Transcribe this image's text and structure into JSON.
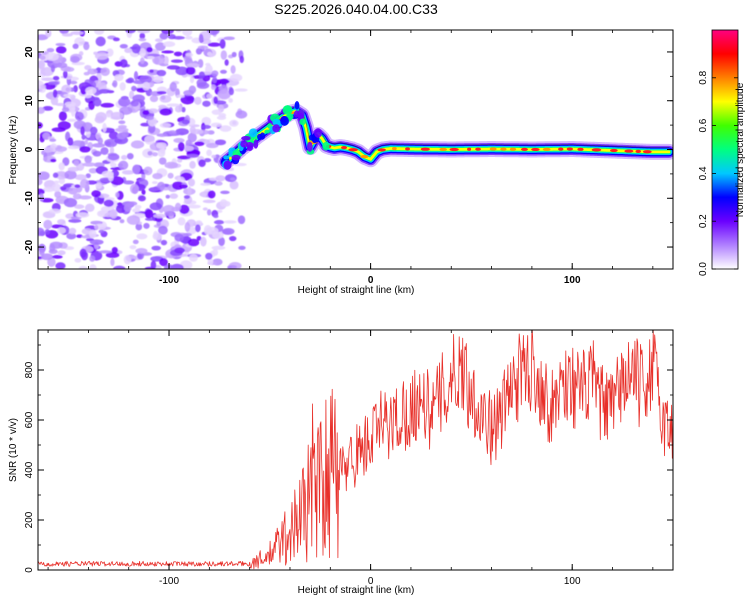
{
  "title": "S225.2026.040.04.00.C33",
  "chart_data": [
    {
      "type": "heatmap",
      "name": "spectrogram",
      "xlabel": "Height of straight line (km)",
      "ylabel": "Frequency (Hz)",
      "xlim": [
        -165,
        150
      ],
      "ylim": [
        -24.5,
        24.5
      ],
      "x_ticks": [
        -100,
        0,
        100
      ],
      "y_ticks": [
        -20,
        -10,
        0,
        10,
        20
      ],
      "noise_region_x": [
        -165,
        -65
      ],
      "ridge": {
        "x": [
          -72,
          -68,
          -64,
          -60,
          -56,
          -52,
          -48,
          -44,
          -40,
          -37,
          -34,
          -32,
          -30,
          -28,
          -26,
          -24,
          -22,
          -20,
          -18,
          -15,
          -12,
          -9,
          -6,
          -3,
          0,
          3,
          6,
          10,
          20,
          40,
          60,
          80,
          100,
          120,
          140,
          148
        ],
        "y": [
          -2.5,
          -1.2,
          0.3,
          1.5,
          2.8,
          4.0,
          5.2,
          6.5,
          7.5,
          7.8,
          7.0,
          4.5,
          0.5,
          2.0,
          3.0,
          2.2,
          0.8,
          0.5,
          0.3,
          0.5,
          0.3,
          0.0,
          -0.5,
          -1.5,
          -2.0,
          -0.5,
          0.0,
          0.2,
          0.1,
          0.0,
          0.1,
          0.0,
          0.1,
          -0.2,
          -0.5,
          -0.5
        ]
      },
      "colorbar": {
        "label": "Normalized spectral amplitude",
        "range": [
          0,
          1
        ],
        "ticks": [
          "0.0",
          "0.2",
          "0.4",
          "0.6",
          "0.8"
        ],
        "colors": [
          "#ffffff",
          "#b080ff",
          "#6a00ff",
          "#0000ff",
          "#00c8ff",
          "#00ff80",
          "#40ff00",
          "#ffff00",
          "#ff8000",
          "#ff0000",
          "#ff0080"
        ]
      }
    },
    {
      "type": "line",
      "name": "snr",
      "xlabel": "Height of straight line (km)",
      "ylabel": "SNR (10 * v/v)",
      "xlim": [
        -165,
        150
      ],
      "ylim": [
        0,
        960
      ],
      "x_ticks": [
        -100,
        0,
        100
      ],
      "y_ticks": [
        0,
        200,
        400,
        600,
        800
      ],
      "color": "#e8302a",
      "envelope": {
        "x": [
          -165,
          -60,
          -55,
          -50,
          -45,
          -40,
          -35,
          -30,
          -25,
          -20,
          -15,
          -10,
          -5,
          0,
          5,
          10,
          15,
          20,
          25,
          30,
          35,
          40,
          45,
          50,
          55,
          60,
          65,
          70,
          75,
          80,
          85,
          90,
          95,
          100,
          105,
          110,
          115,
          120,
          125,
          130,
          135,
          140,
          145,
          150
        ],
        "y": [
          25,
          25,
          40,
          60,
          110,
          150,
          220,
          290,
          330,
          380,
          390,
          440,
          480,
          520,
          580,
          580,
          620,
          640,
          700,
          620,
          700,
          760,
          820,
          700,
          640,
          560,
          620,
          740,
          780,
          820,
          730,
          640,
          760,
          740,
          710,
          760,
          660,
          640,
          760,
          780,
          720,
          820,
          600,
          540
        ]
      }
    }
  ]
}
